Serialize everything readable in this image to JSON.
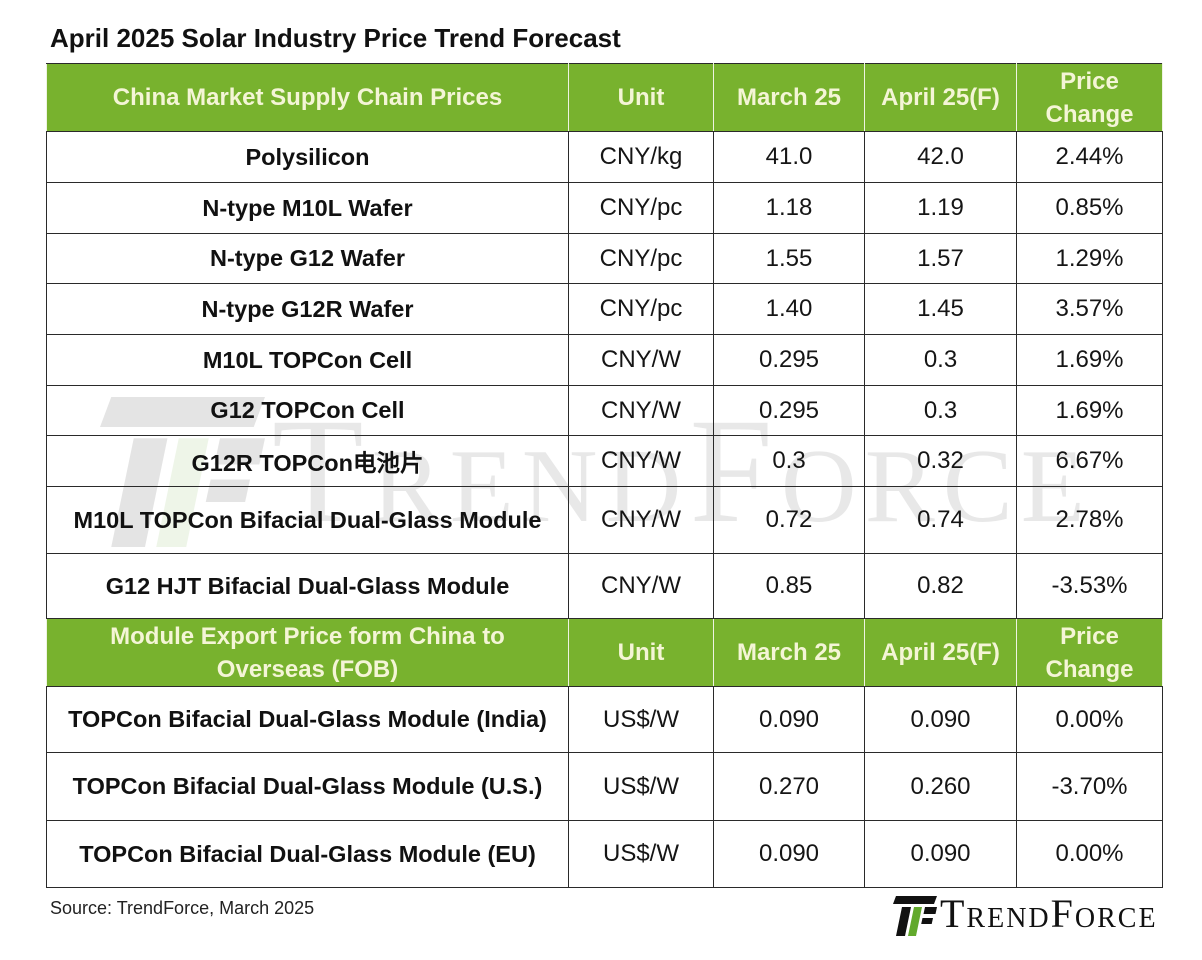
{
  "source": "Source: TrendForce, March 2025",
  "branding": {
    "logo_text": "TrendForce",
    "watermark_text": "TrendForce",
    "logo_icon": "trendforce-tf-icon",
    "colors": {
      "header_background": "#78b22e",
      "header_text": "#f4f5d6",
      "logo_green": "#62a92c"
    }
  },
  "chart_data": {
    "type": "table",
    "title": "April 2025 Solar Industry Price Trend Forecast",
    "sections": [
      {
        "header": [
          "China Market Supply Chain Prices",
          "Unit",
          "March 25",
          "April 25(F)",
          "Price Change"
        ],
        "rows": [
          [
            "Polysilicon",
            "CNY/kg",
            "41.0",
            "42.0",
            "2.44%"
          ],
          [
            "N-type M10L Wafer",
            "CNY/pc",
            "1.18",
            "1.19",
            "0.85%"
          ],
          [
            "N-type G12 Wafer",
            "CNY/pc",
            "1.55",
            "1.57",
            "1.29%"
          ],
          [
            "N-type G12R Wafer",
            "CNY/pc",
            "1.40",
            "1.45",
            "3.57%"
          ],
          [
            "M10L TOPCon Cell",
            "CNY/W",
            "0.295",
            "0.3",
            "1.69%"
          ],
          [
            "G12 TOPCon Cell",
            "CNY/W",
            "0.295",
            "0.3",
            "1.69%"
          ],
          [
            "G12R TOPCon电池片",
            "CNY/W",
            "0.3",
            "0.32",
            "6.67%"
          ],
          [
            "M10L TOPCon Bifacial Dual-Glass Module",
            "CNY/W",
            "0.72",
            "0.74",
            "2.78%"
          ],
          [
            "G12 HJT Bifacial Dual-Glass Module",
            "CNY/W",
            "0.85",
            "0.82",
            "-3.53%"
          ]
        ]
      },
      {
        "header": [
          "Module Export Price form China to Overseas (FOB)",
          "Unit",
          "March 25",
          "April 25(F)",
          "Price Change"
        ],
        "rows": [
          [
            "TOPCon Bifacial Dual-Glass Module (India)",
            "US$/W",
            "0.090",
            "0.090",
            "0.00%"
          ],
          [
            "TOPCon Bifacial Dual-Glass Module (U.S.)",
            "US$/W",
            "0.270",
            "0.260",
            "-3.70%"
          ],
          [
            "TOPCon Bifacial Dual-Glass Module (EU)",
            "US$/W",
            "0.090",
            "0.090",
            "0.00%"
          ]
        ]
      }
    ]
  }
}
